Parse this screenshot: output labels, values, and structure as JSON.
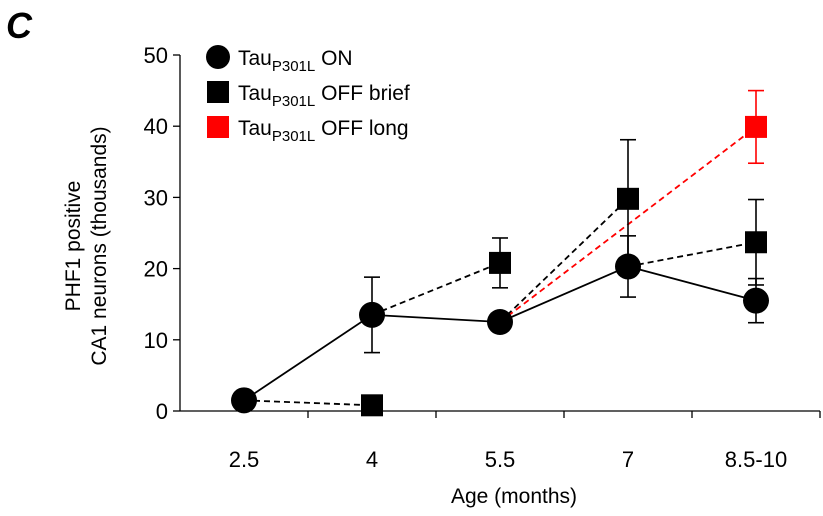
{
  "panel_label": "C",
  "chart_data": {
    "type": "line",
    "title": "",
    "xlabel": "Age (months)",
    "ylabel_lines": [
      "PHF1 positive",
      "CA1 neurons (thousands)"
    ],
    "categories": [
      "2.5",
      "4",
      "5.5",
      "7",
      "8.5-10"
    ],
    "ylim": [
      0,
      50
    ],
    "yticks": [
      "0",
      "10",
      "20",
      "30",
      "40",
      "50"
    ],
    "grid": false,
    "legend_position": "top-left",
    "series": [
      {
        "name": "TauP301L ON",
        "legend_base": "Tau",
        "legend_sub": "P301L",
        "legend_rest": " ON",
        "marker": "circle",
        "color": "#000000",
        "line": "solid",
        "points": [
          {
            "x": "2.5",
            "y": 1.5
          },
          {
            "x": "4",
            "y": 13.5,
            "err": 5.3
          },
          {
            "x": "5.5",
            "y": 12.5
          },
          {
            "x": "7",
            "y": 20.3,
            "err": 4.3
          },
          {
            "x": "8.5-10",
            "y": 15.5,
            "err": 3.1
          }
        ]
      },
      {
        "name": "TauP301L OFF brief",
        "legend_base": "Tau",
        "legend_sub": "P301L",
        "legend_rest": " OFF brief",
        "marker": "square",
        "color": "#000000",
        "line": "dashed",
        "points": [
          {
            "x": "4",
            "y": 0.8
          },
          {
            "x": "5.5",
            "y": 20.8,
            "err": 3.5
          },
          {
            "x": "7",
            "y": 29.8,
            "err": 8.3
          },
          {
            "x": "8.5-10",
            "y": 23.7,
            "err": 6.0
          }
        ],
        "connectors": [
          [
            "2.5",
            1.5,
            "4",
            0.8
          ],
          [
            "4",
            13.5,
            "5.5",
            20.8
          ],
          [
            "5.5",
            12.5,
            "7",
            29.8
          ],
          [
            "7",
            20.3,
            "8.5-10",
            23.7
          ]
        ]
      },
      {
        "name": "TauP301L OFF long",
        "legend_base": "Tau",
        "legend_sub": "P301L",
        "legend_rest": " OFF long",
        "marker": "square",
        "color": "#ff0000",
        "line": "dashed",
        "points": [
          {
            "x": "8.5-10",
            "y": 39.9,
            "err": 5.1
          }
        ],
        "connectors": [
          [
            "5.5",
            12.5,
            "8.5-10",
            39.9
          ]
        ]
      }
    ]
  }
}
